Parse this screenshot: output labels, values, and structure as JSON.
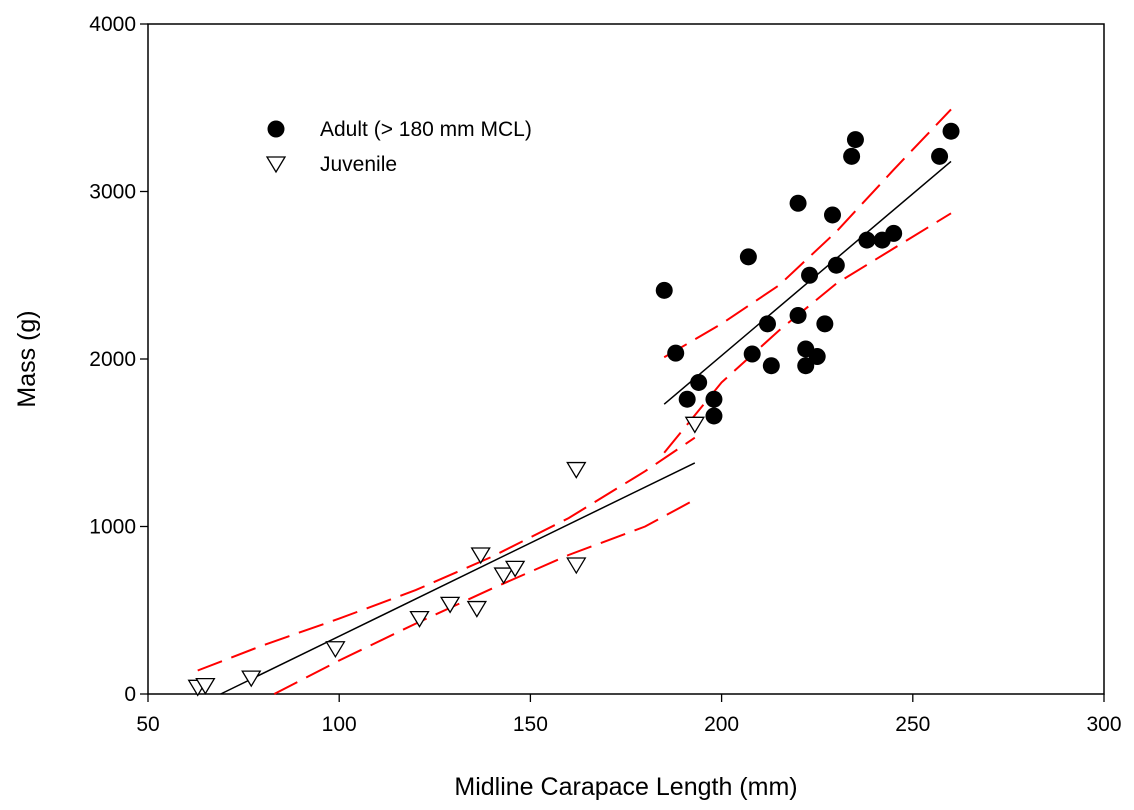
{
  "chart_data": {
    "type": "scatter",
    "title": "",
    "xlabel": "Midline Carapace Length (mm)",
    "ylabel": "Mass (g)",
    "xlim": [
      50,
      300
    ],
    "ylim": [
      0,
      4000
    ],
    "xticks": [
      50,
      100,
      150,
      200,
      250,
      300
    ],
    "yticks": [
      0,
      1000,
      2000,
      3000,
      4000
    ],
    "grid": false,
    "legend_position": "top-left",
    "series": [
      {
        "name": "Adult (> 180 mm MCL)",
        "marker": "filled-circle",
        "color": "#000000",
        "points": [
          [
            185,
            2410
          ],
          [
            188,
            2035
          ],
          [
            191,
            1760
          ],
          [
            194,
            1860
          ],
          [
            198,
            1760
          ],
          [
            198,
            1660
          ],
          [
            207,
            2610
          ],
          [
            208,
            2030
          ],
          [
            212,
            2210
          ],
          [
            213,
            1960
          ],
          [
            220,
            2930
          ],
          [
            220,
            2260
          ],
          [
            222,
            2060
          ],
          [
            222,
            1960
          ],
          [
            223,
            2500
          ],
          [
            225,
            2015
          ],
          [
            227,
            2210
          ],
          [
            229,
            2860
          ],
          [
            230,
            2560
          ],
          [
            234,
            3210
          ],
          [
            235,
            3310
          ],
          [
            238,
            2710
          ],
          [
            242,
            2710
          ],
          [
            245,
            2750
          ],
          [
            257,
            3210
          ],
          [
            260,
            3360
          ]
        ]
      },
      {
        "name": "Juvenile",
        "marker": "open-triangle-down",
        "color": "#000000",
        "points": [
          [
            63,
            40
          ],
          [
            65,
            50
          ],
          [
            77,
            95
          ],
          [
            99,
            270
          ],
          [
            121,
            450
          ],
          [
            129,
            535
          ],
          [
            136,
            510
          ],
          [
            137,
            830
          ],
          [
            143,
            710
          ],
          [
            146,
            750
          ],
          [
            162,
            1340
          ],
          [
            162,
            770
          ],
          [
            193,
            1610
          ]
        ]
      }
    ],
    "fits": [
      {
        "role": "regression",
        "group": "juvenile",
        "color": "#000000",
        "dash": "solid",
        "x": [
          69,
          193
        ],
        "y": [
          0,
          1380
        ]
      },
      {
        "role": "ci-upper",
        "group": "juvenile",
        "color": "#ff0000",
        "dash": "dashed",
        "x": [
          63,
          80,
          100,
          120,
          140,
          160,
          180,
          193
        ],
        "y": [
          140,
          290,
          450,
          620,
          820,
          1050,
          1330,
          1530
        ]
      },
      {
        "role": "ci-lower",
        "group": "juvenile",
        "color": "#ff0000",
        "dash": "dashed",
        "x": [
          83,
          100,
          120,
          140,
          160,
          180,
          193
        ],
        "y": [
          0,
          200,
          420,
          630,
          830,
          1000,
          1160
        ]
      },
      {
        "role": "regression",
        "group": "adult",
        "color": "#000000",
        "dash": "solid",
        "x": [
          185,
          260
        ],
        "y": [
          1730,
          3180
        ]
      },
      {
        "role": "ci-upper",
        "group": "adult",
        "color": "#ff0000",
        "dash": "dashed",
        "x": [
          185,
          200,
          215,
          230,
          245,
          260
        ],
        "y": [
          2010,
          2210,
          2440,
          2760,
          3130,
          3490
        ]
      },
      {
        "role": "ci-lower",
        "group": "adult",
        "color": "#ff0000",
        "dash": "dashed",
        "x": [
          185,
          200,
          215,
          230,
          245,
          260
        ],
        "y": [
          1440,
          1860,
          2170,
          2450,
          2660,
          2870
        ]
      }
    ]
  }
}
